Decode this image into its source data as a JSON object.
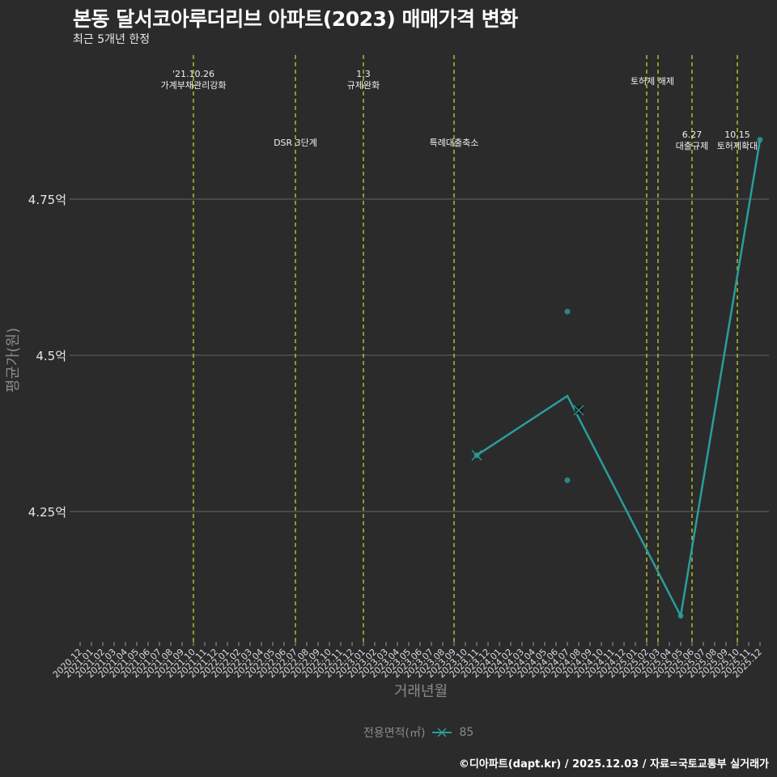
{
  "header": {
    "title": "본동 달서코아루더리브 아파트(2023) 매매가격 변화",
    "subtitle": "최근 5개년 한정"
  },
  "axes": {
    "ylabel": "평균가(원)",
    "xlabel": "거래년월"
  },
  "legend": {
    "title": "전용면적(㎡)",
    "items": [
      {
        "label": "85",
        "color": "#2a9d9a"
      }
    ]
  },
  "footer": "©디아파트(dapt.kr) / 2025.12.03 / 자료=국토교통부 실거래가",
  "colors": {
    "background": "#2b2b2b",
    "grid": "#5a5a5a",
    "series": "#2a9d9a",
    "event_line": "#c8d12a"
  },
  "chart_data": {
    "type": "line",
    "title": "본동 달서코아루더리브 아파트(2023) 매매가격 변화",
    "subtitle": "최근 5개년 한정",
    "xlabel": "거래년월",
    "ylabel": "평균가(원)",
    "categories": [
      "2020.12",
      "2021.01",
      "2021.02",
      "2021.03",
      "2021.04",
      "2021.05",
      "2021.06",
      "2021.07",
      "2021.08",
      "2021.09",
      "2021.10",
      "2021.11",
      "2021.12",
      "2022.01",
      "2022.02",
      "2022.03",
      "2022.04",
      "2022.05",
      "2022.06",
      "2022.07",
      "2022.08",
      "2022.09",
      "2022.10",
      "2022.11",
      "2022.12",
      "2023.01",
      "2023.02",
      "2023.03",
      "2023.04",
      "2023.05",
      "2023.06",
      "2023.07",
      "2023.08",
      "2023.09",
      "2023.10",
      "2023.11",
      "2023.12",
      "2024.01",
      "2024.02",
      "2024.03",
      "2024.04",
      "2024.05",
      "2024.06",
      "2024.07",
      "2024.08",
      "2024.09",
      "2024.10",
      "2024.11",
      "2024.12",
      "2025.01",
      "2025.02",
      "2025.03",
      "2025.04",
      "2025.05",
      "2025.06",
      "2025.07",
      "2025.08",
      "2025.09",
      "2025.10",
      "2025.11",
      "2025.12"
    ],
    "yticks": [
      {
        "value": 4.25,
        "label": "4.25억"
      },
      {
        "value": 4.5,
        "label": "4.5억"
      },
      {
        "value": 4.75,
        "label": "4.75억"
      }
    ],
    "ylim": [
      4.04,
      4.88
    ],
    "grid": true,
    "legend_position": "bottom",
    "series": [
      {
        "name": "85",
        "unit": "억",
        "line": [
          {
            "x": "2023.11",
            "y": 4.34
          },
          {
            "x": "2024.07",
            "y": 4.435
          },
          {
            "x": "2025.05",
            "y": 4.083
          },
          {
            "x": "2025.12",
            "y": 4.845
          }
        ],
        "cancelled_points": [
          {
            "x": "2023.11",
            "y": 4.34
          },
          {
            "x": "2024.08",
            "y": 4.412
          }
        ],
        "individual_trades": [
          {
            "x": "2023.11",
            "y": 4.34
          },
          {
            "x": "2024.07",
            "y": 4.57
          },
          {
            "x": "2024.07",
            "y": 4.3
          },
          {
            "x": "2025.05",
            "y": 4.083
          },
          {
            "x": "2025.12",
            "y": 4.845
          }
        ]
      }
    ],
    "annotations": [
      {
        "x": "2021.10",
        "lines": [
          "'21.10.26",
          "가계부채관리강화"
        ],
        "row": 1
      },
      {
        "x": "2022.07",
        "lines": [
          "DSR 3단계"
        ],
        "row": 2
      },
      {
        "x": "2023.01",
        "lines": [
          "1.3",
          "규제완화"
        ],
        "row": 1
      },
      {
        "x": "2023.09",
        "lines": [
          "특례대출축소"
        ],
        "row": 2
      },
      {
        "x": "2025.02",
        "lines": [
          "토허제 해제"
        ],
        "row": 1,
        "label_between": [
          "2025.02",
          "2025.03"
        ]
      },
      {
        "x": "2025.03",
        "lines": [],
        "row": 1
      },
      {
        "x": "2025.06",
        "lines": [
          "6.27",
          "대출규제"
        ],
        "row": 2
      },
      {
        "x": "2025.10",
        "lines": [
          "10.15",
          "토허제확대"
        ],
        "row": 2
      }
    ]
  }
}
